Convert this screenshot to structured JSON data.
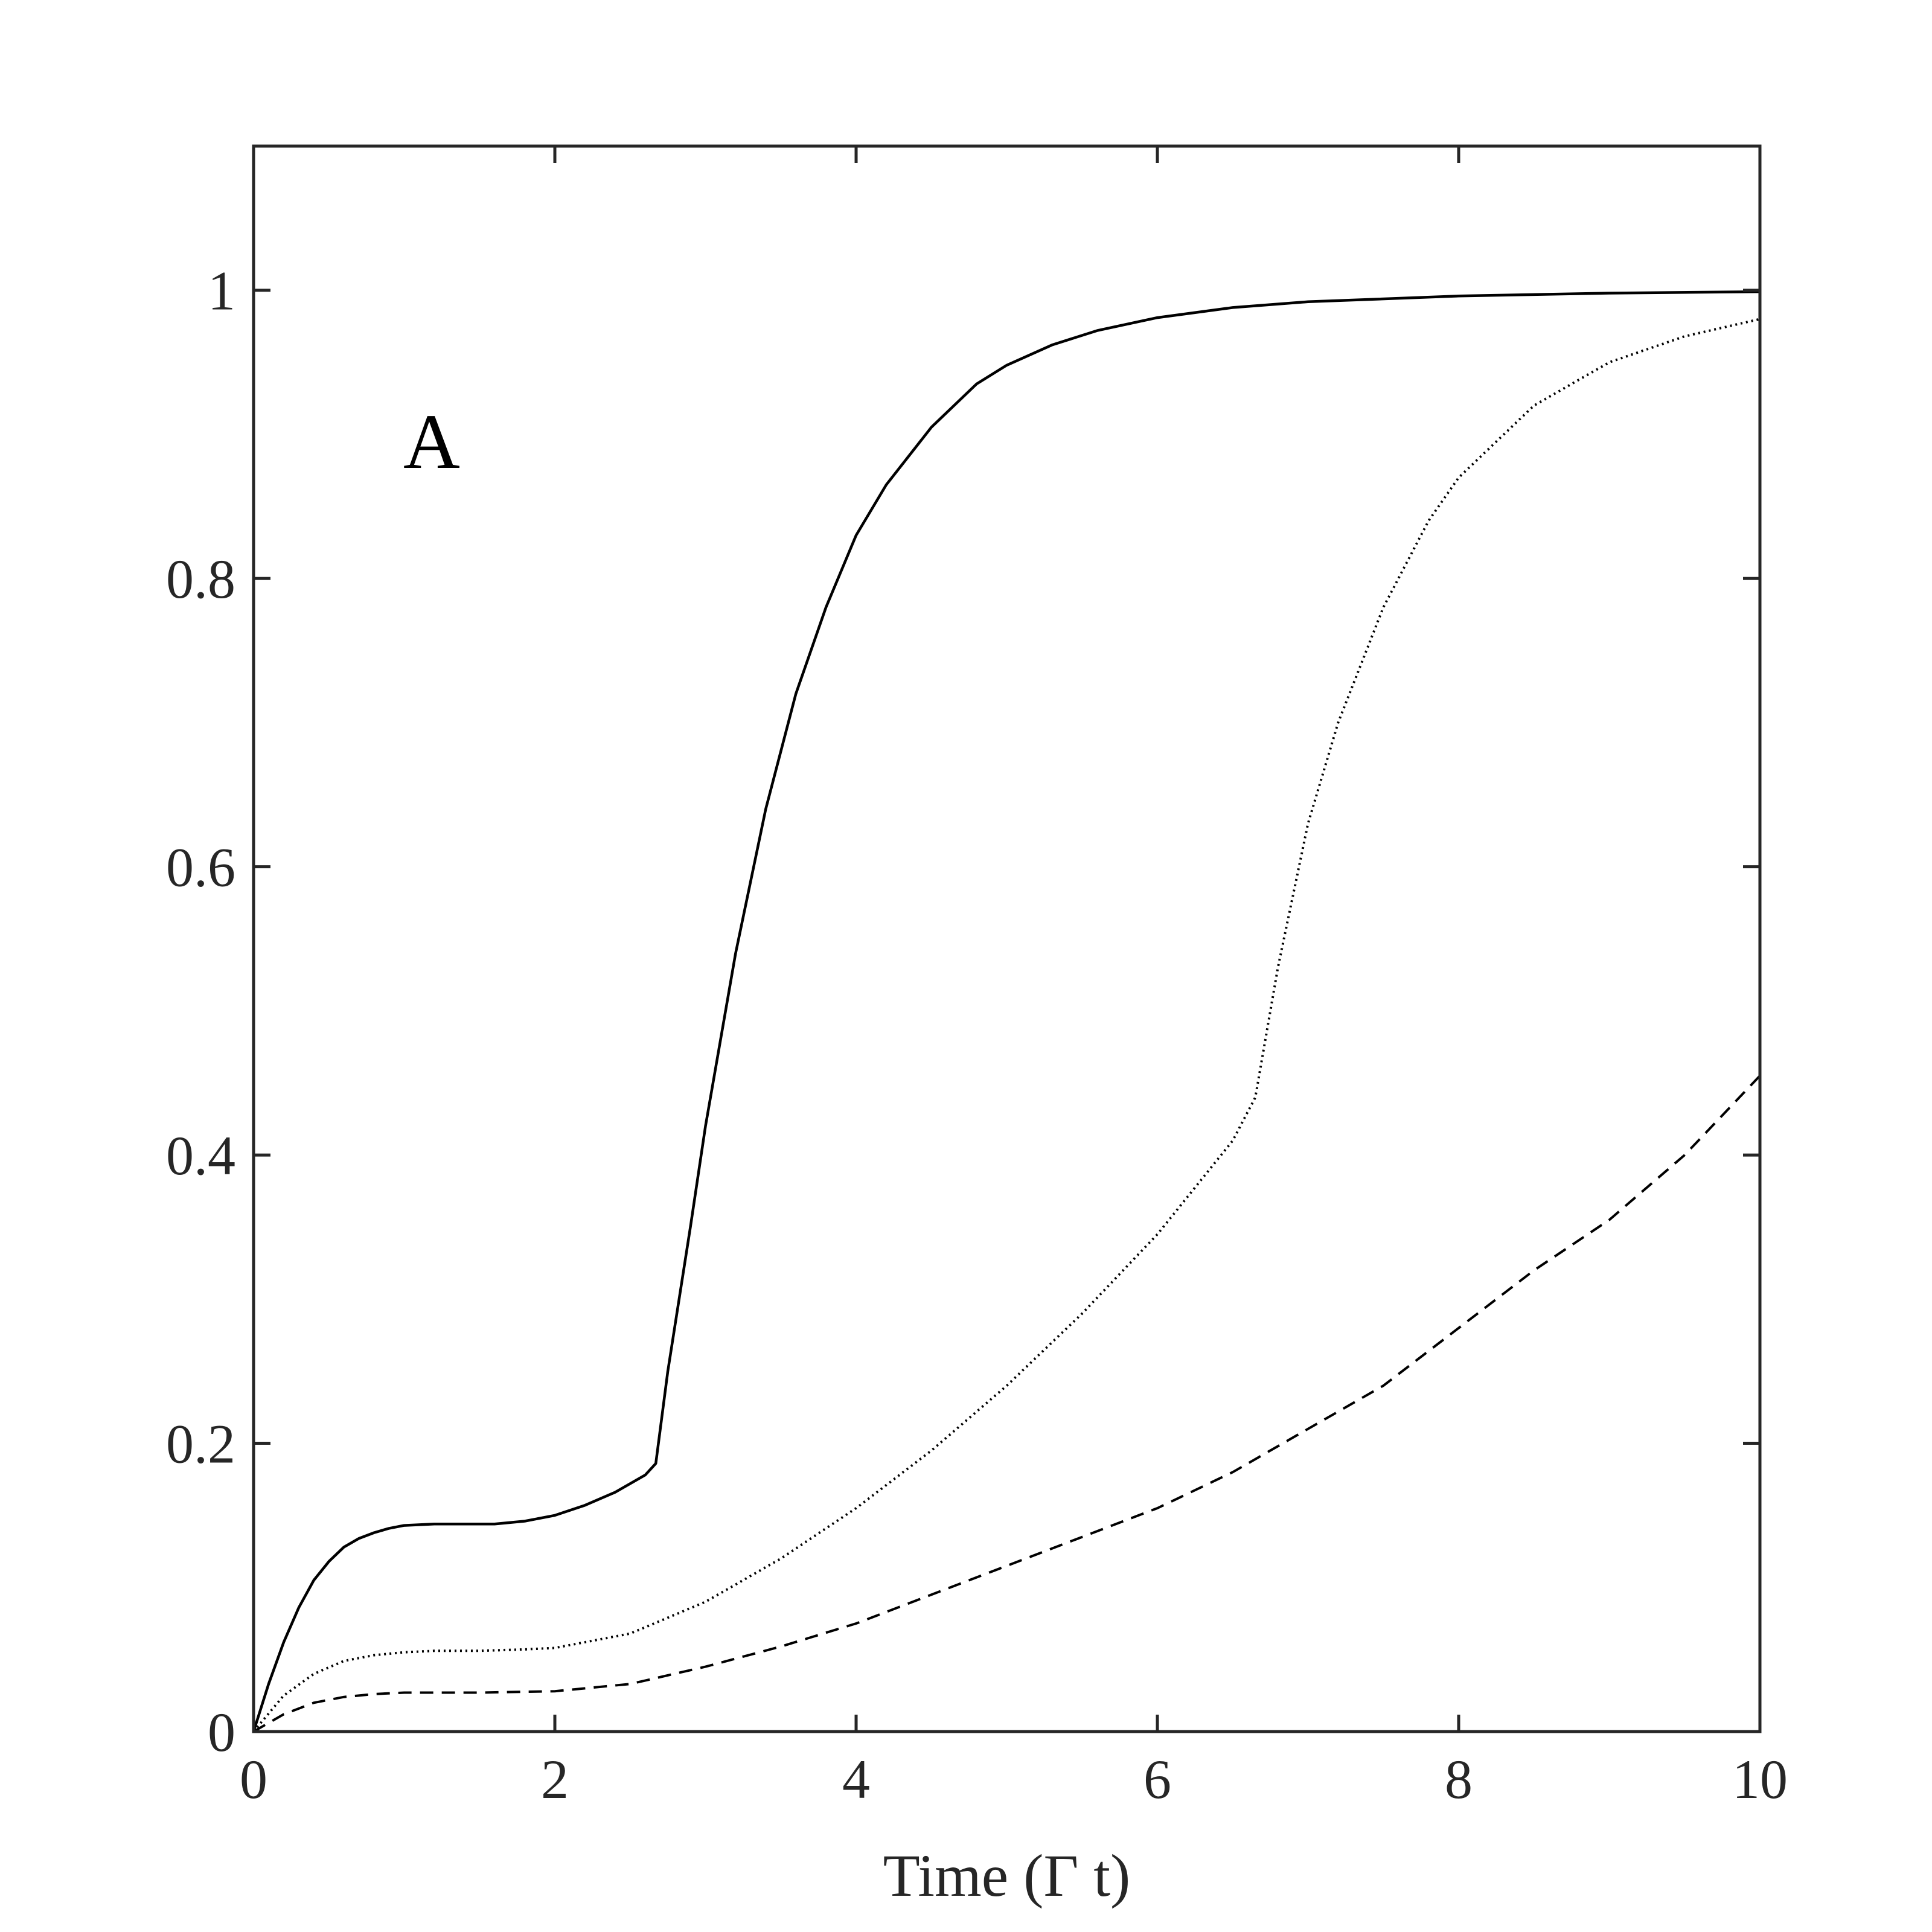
{
  "chart_data": {
    "type": "line",
    "title": "",
    "panel_label": "A",
    "xlabel": "Time (Γ t)",
    "ylabel": "",
    "xlim": [
      0,
      10
    ],
    "ylim": [
      0,
      1.1
    ],
    "x_ticks": [
      0,
      2,
      4,
      6,
      8,
      10
    ],
    "x_tick_labels": [
      "0",
      "2",
      "4",
      "6",
      "8",
      "10"
    ],
    "y_ticks": [
      0,
      0.2,
      0.4,
      0.6,
      0.8,
      1
    ],
    "y_tick_labels": [
      "0",
      "0.2",
      "0.4",
      "0.6",
      "0.8",
      "1"
    ],
    "grid": false,
    "legend": "none",
    "colors": {
      "line": "#000000",
      "axes": "#262626"
    },
    "series": [
      {
        "style": "solid",
        "x": [
          0,
          0.1,
          0.2,
          0.3,
          0.4,
          0.5,
          0.6,
          0.7,
          0.8,
          0.9,
          1.0,
          1.2,
          1.4,
          1.6,
          1.8,
          2.0,
          2.2,
          2.4,
          2.6,
          2.67,
          2.75,
          2.9,
          3.0,
          3.2,
          3.4,
          3.6,
          3.8,
          4.0,
          4.2,
          4.5,
          4.8,
          5.0,
          5.3,
          5.6,
          6.0,
          6.5,
          7.0,
          8.0,
          9.0,
          10.0
        ],
        "y": [
          0,
          0.033,
          0.062,
          0.086,
          0.105,
          0.118,
          0.128,
          0.134,
          0.138,
          0.141,
          0.143,
          0.144,
          0.144,
          0.144,
          0.146,
          0.15,
          0.157,
          0.166,
          0.178,
          0.186,
          0.25,
          0.35,
          0.42,
          0.54,
          0.64,
          0.72,
          0.78,
          0.83,
          0.865,
          0.905,
          0.935,
          0.948,
          0.962,
          0.972,
          0.981,
          0.988,
          0.992,
          0.996,
          0.998,
          0.999
        ]
      },
      {
        "style": "dotted",
        "x": [
          0,
          0.2,
          0.4,
          0.6,
          0.8,
          1.0,
          1.2,
          1.5,
          1.8,
          2.0,
          2.5,
          3.0,
          3.5,
          4.0,
          4.5,
          5.0,
          5.5,
          6.0,
          6.5,
          6.65,
          6.8,
          7.0,
          7.2,
          7.5,
          7.8,
          8.0,
          8.5,
          9.0,
          9.5,
          10.0
        ],
        "y": [
          0,
          0.025,
          0.04,
          0.049,
          0.053,
          0.055,
          0.056,
          0.056,
          0.057,
          0.058,
          0.068,
          0.09,
          0.12,
          0.155,
          0.195,
          0.24,
          0.29,
          0.345,
          0.41,
          0.44,
          0.53,
          0.63,
          0.7,
          0.78,
          0.84,
          0.87,
          0.92,
          0.95,
          0.968,
          0.98
        ]
      },
      {
        "style": "dashed",
        "x": [
          0,
          0.2,
          0.4,
          0.6,
          0.8,
          1.0,
          1.5,
          2.0,
          2.5,
          3.0,
          3.5,
          4.0,
          4.5,
          5.0,
          5.5,
          6.0,
          6.5,
          7.0,
          7.5,
          8.0,
          8.5,
          9.0,
          9.5,
          10.0
        ],
        "y": [
          0,
          0.012,
          0.02,
          0.024,
          0.026,
          0.027,
          0.027,
          0.028,
          0.033,
          0.045,
          0.059,
          0.075,
          0.095,
          0.115,
          0.135,
          0.155,
          0.18,
          0.21,
          0.24,
          0.28,
          0.32,
          0.355,
          0.4,
          0.455
        ]
      }
    ]
  }
}
